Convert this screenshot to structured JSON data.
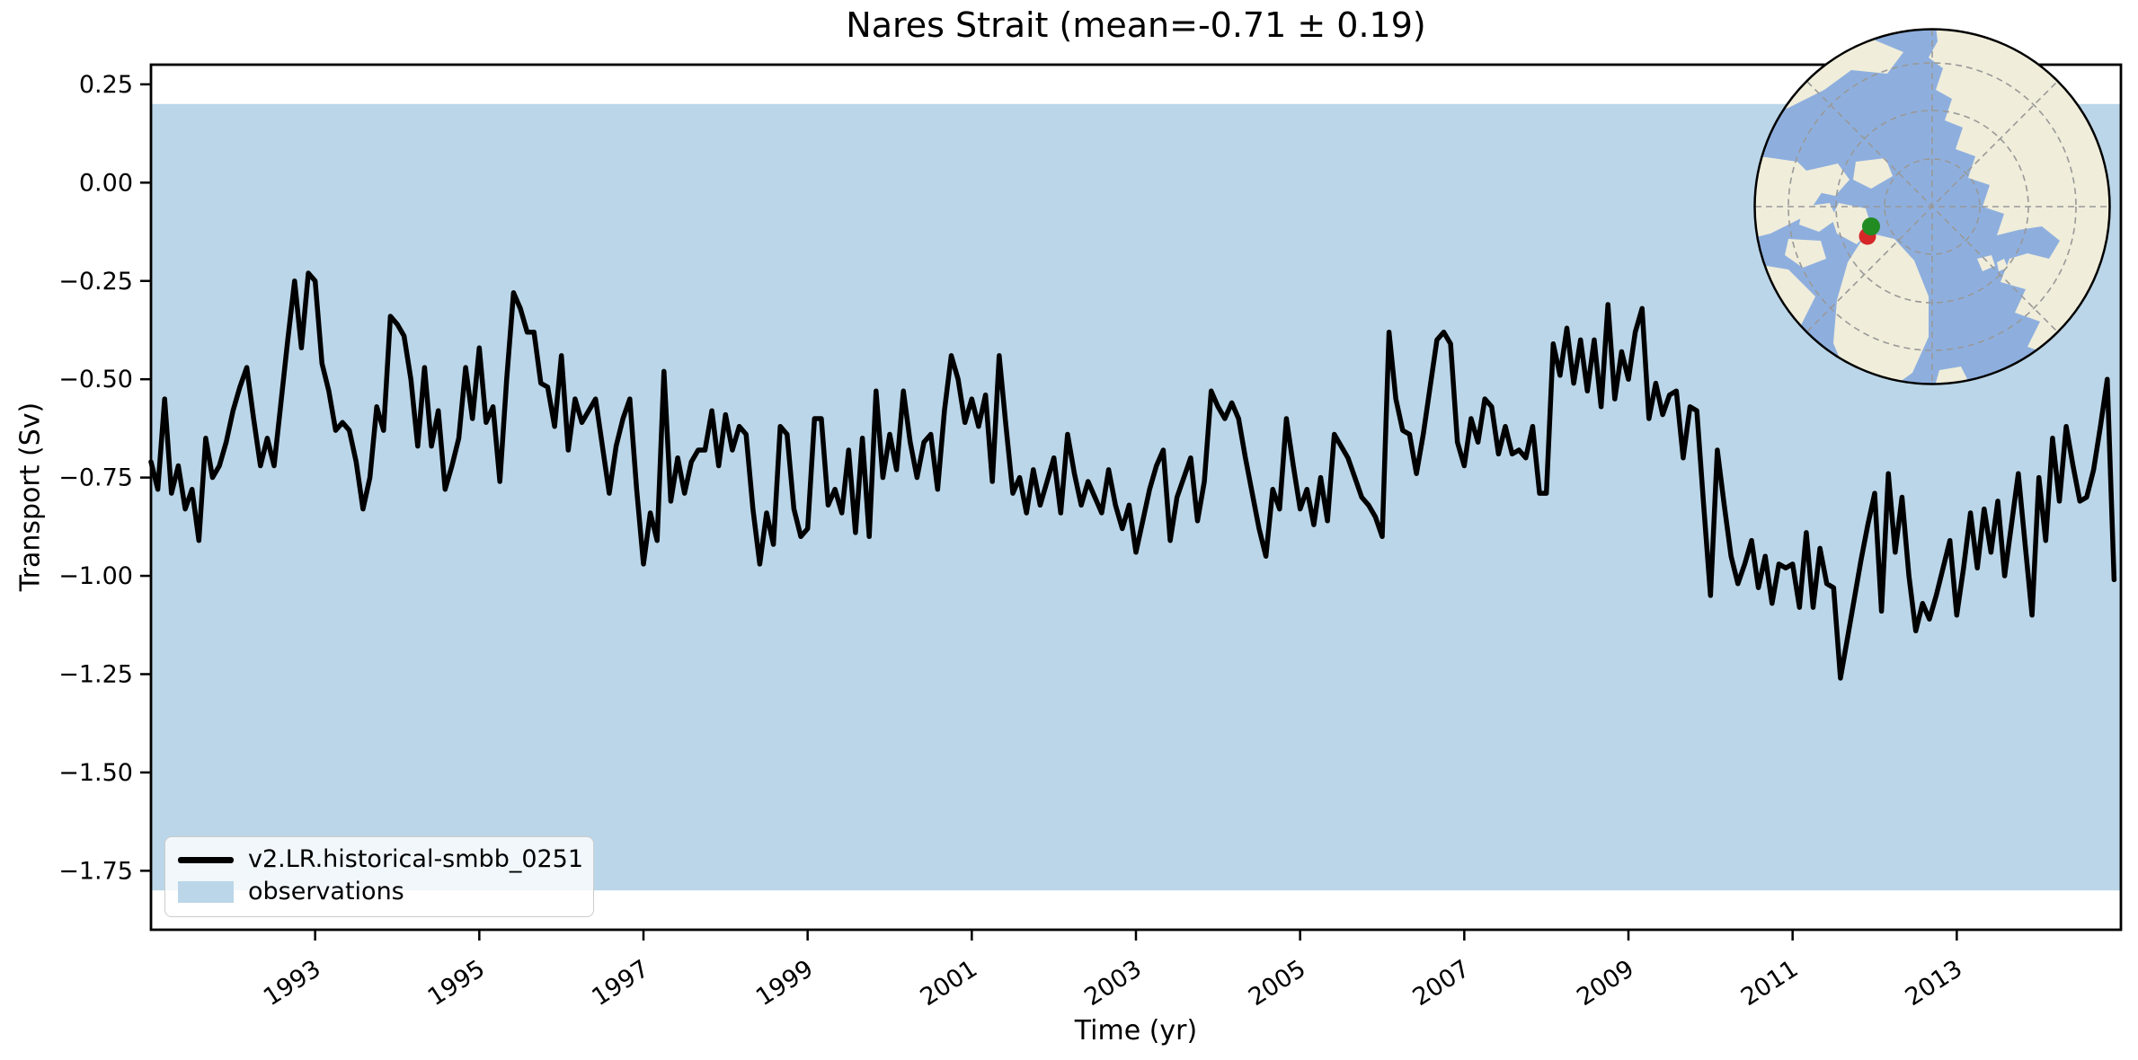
{
  "chart_data": {
    "type": "line",
    "title": "Nares Strait (mean=-0.71 ± 0.19)",
    "xlabel": "Time (yr)",
    "ylabel": "Transport (Sv)",
    "xlim": [
      1991.0,
      2015.0
    ],
    "ylim": [
      -1.9,
      0.3
    ],
    "xticks": [
      1993,
      1995,
      1997,
      1999,
      2001,
      2003,
      2005,
      2007,
      2009,
      2011,
      2013
    ],
    "yticks": [
      0.25,
      0.0,
      -0.25,
      -0.5,
      -0.75,
      -1.0,
      -1.25,
      -1.5,
      -1.75
    ],
    "grid": false,
    "legend_position": "lower left",
    "series": [
      {
        "name": "v2.LR.historical-smbb_0251",
        "color": "#000000",
        "x_start": 1991.0,
        "x_step": 0.0833333,
        "values": [
          -0.71,
          -0.78,
          -0.55,
          -0.79,
          -0.72,
          -0.83,
          -0.78,
          -0.91,
          -0.65,
          -0.75,
          -0.72,
          -0.66,
          -0.58,
          -0.52,
          -0.47,
          -0.6,
          -0.72,
          -0.65,
          -0.72,
          -0.56,
          -0.4,
          -0.25,
          -0.42,
          -0.23,
          -0.25,
          -0.46,
          -0.53,
          -0.63,
          -0.61,
          -0.63,
          -0.71,
          -0.83,
          -0.75,
          -0.57,
          -0.63,
          -0.34,
          -0.36,
          -0.39,
          -0.5,
          -0.67,
          -0.47,
          -0.67,
          -0.58,
          -0.78,
          -0.72,
          -0.65,
          -0.47,
          -0.6,
          -0.42,
          -0.61,
          -0.57,
          -0.76,
          -0.5,
          -0.28,
          -0.32,
          -0.38,
          -0.38,
          -0.51,
          -0.52,
          -0.62,
          -0.44,
          -0.68,
          -0.55,
          -0.61,
          -0.58,
          -0.55,
          -0.67,
          -0.79,
          -0.67,
          -0.6,
          -0.55,
          -0.78,
          -0.97,
          -0.84,
          -0.91,
          -0.48,
          -0.81,
          -0.7,
          -0.79,
          -0.71,
          -0.68,
          -0.68,
          -0.58,
          -0.72,
          -0.59,
          -0.68,
          -0.62,
          -0.64,
          -0.83,
          -0.97,
          -0.84,
          -0.92,
          -0.62,
          -0.64,
          -0.83,
          -0.9,
          -0.88,
          -0.6,
          -0.6,
          -0.82,
          -0.78,
          -0.84,
          -0.68,
          -0.89,
          -0.65,
          -0.9,
          -0.53,
          -0.75,
          -0.64,
          -0.73,
          -0.53,
          -0.66,
          -0.75,
          -0.66,
          -0.64,
          -0.78,
          -0.58,
          -0.44,
          -0.5,
          -0.61,
          -0.55,
          -0.62,
          -0.54,
          -0.76,
          -0.44,
          -0.62,
          -0.79,
          -0.75,
          -0.84,
          -0.73,
          -0.82,
          -0.76,
          -0.7,
          -0.84,
          -0.64,
          -0.74,
          -0.82,
          -0.76,
          -0.8,
          -0.84,
          -0.73,
          -0.82,
          -0.88,
          -0.82,
          -0.94,
          -0.86,
          -0.78,
          -0.72,
          -0.68,
          -0.91,
          -0.8,
          -0.75,
          -0.7,
          -0.86,
          -0.76,
          -0.53,
          -0.57,
          -0.6,
          -0.56,
          -0.6,
          -0.7,
          -0.79,
          -0.88,
          -0.95,
          -0.78,
          -0.83,
          -0.6,
          -0.72,
          -0.83,
          -0.78,
          -0.87,
          -0.75,
          -0.86,
          -0.64,
          -0.67,
          -0.7,
          -0.75,
          -0.8,
          -0.82,
          -0.85,
          -0.9,
          -0.38,
          -0.55,
          -0.63,
          -0.64,
          -0.74,
          -0.64,
          -0.52,
          -0.4,
          -0.38,
          -0.41,
          -0.66,
          -0.72,
          -0.6,
          -0.66,
          -0.55,
          -0.57,
          -0.69,
          -0.62,
          -0.69,
          -0.68,
          -0.7,
          -0.62,
          -0.79,
          -0.79,
          -0.41,
          -0.49,
          -0.37,
          -0.51,
          -0.4,
          -0.53,
          -0.4,
          -0.57,
          -0.31,
          -0.55,
          -0.43,
          -0.5,
          -0.38,
          -0.32,
          -0.6,
          -0.51,
          -0.59,
          -0.54,
          -0.53,
          -0.7,
          -0.57,
          -0.58,
          -0.82,
          -1.05,
          -0.68,
          -0.82,
          -0.95,
          -1.02,
          -0.97,
          -0.91,
          -1.03,
          -0.95,
          -1.07,
          -0.97,
          -0.98,
          -0.97,
          -1.08,
          -0.89,
          -1.08,
          -0.93,
          -1.02,
          -1.03,
          -1.26,
          -1.16,
          -1.06,
          -0.96,
          -0.87,
          -0.79,
          -1.09,
          -0.74,
          -0.94,
          -0.8,
          -1.0,
          -1.14,
          -1.07,
          -1.11,
          -1.05,
          -0.98,
          -0.91,
          -1.1,
          -0.98,
          -0.84,
          -0.98,
          -0.83,
          -0.94,
          -0.81,
          -1.0,
          -0.87,
          -0.74,
          -0.92,
          -1.1,
          -0.75,
          -0.91,
          -0.65,
          -0.81,
          -0.62,
          -0.72,
          -0.81,
          -0.8,
          -0.73,
          -0.62,
          -0.5,
          -1.01
        ]
      }
    ],
    "observations_band": {
      "label": "observations",
      "range": [
        -1.8,
        0.2
      ],
      "color": "#bbd6e8"
    }
  },
  "inset_map": {
    "ocean_color": "#8eafde",
    "land_color": "#f0edda",
    "graticule_color": "#999999",
    "marker_green": "#228b22",
    "marker_red": "#d62728"
  }
}
